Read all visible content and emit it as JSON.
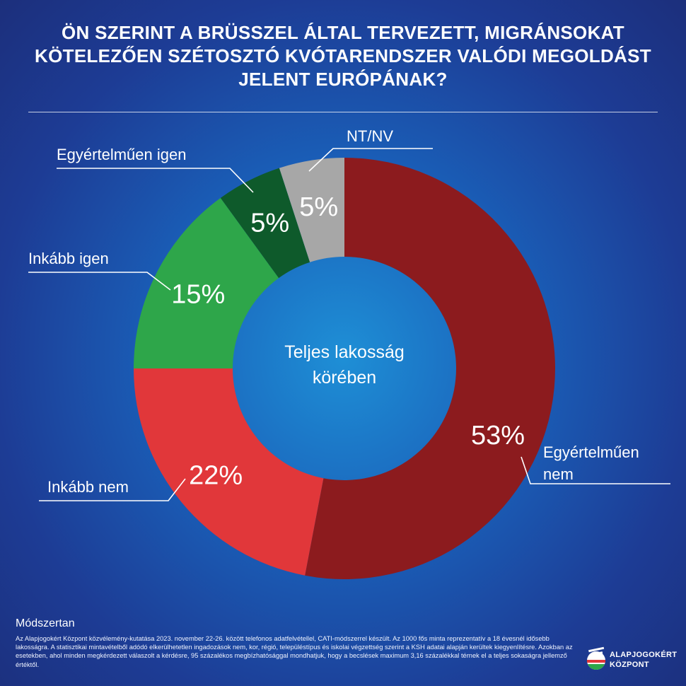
{
  "chart_data": {
    "type": "pie",
    "title": "ÖN SZERINT A BRÜSSZEL ÁLTAL TERVEZETT, MIGRÁNSOKAT KÖTELEZŐEN SZÉTOSZTÓ KVÓTARENDSZER VALÓDI MEGOLDÁST JELENT EURÓPÁNAK?",
    "center_label_1": "Teljes lakosság",
    "center_label_2": "körében",
    "slices": [
      {
        "label": "Egyértelműen nem",
        "label_line_1": "Egyértelműen",
        "label_line_2": "nem",
        "value": 53,
        "value_label": "53%",
        "color": "#8c1b1e"
      },
      {
        "label": "Inkább nem",
        "value": 22,
        "value_label": "22%",
        "color": "#e1373a"
      },
      {
        "label": "Inkább igen",
        "value": 15,
        "value_label": "15%",
        "color": "#2ea64a"
      },
      {
        "label": "Egyértelműen igen",
        "value": 5,
        "value_label": "5%",
        "color": "#0e5a2b"
      },
      {
        "label": "NT/NV",
        "value": 5,
        "value_label": "5%",
        "color": "#a7a7a7"
      }
    ]
  },
  "methodology": {
    "heading": "Módszertan",
    "text": "Az Alapjogokért Központ közvélemény-kutatása 2023. november 22-26. között telefonos adatfelvétellel, CATI-módszerrel készült. Az 1000 fős minta reprezentatív a 18 évesnél idősebb lakosságra. A statisztikai mintavételből adódó elkerülhetetlen ingadozások nem, kor, régió, településtípus és iskolai végzettség szerint a KSH adatai alapján kerültek kiegyenlítésre. Azokban az esetekben, ahol minden megkérdezett válaszolt a kérdésre, 95 százalékos megbízhatósággal mondhatjuk, hogy a becslések maximum 3,16 százalékkal térnek el a teljes sokaságra jellemző értéktől."
  },
  "logo": {
    "line1": "ALAPJOGOKÉRT",
    "line2": "KÖZPONT"
  }
}
